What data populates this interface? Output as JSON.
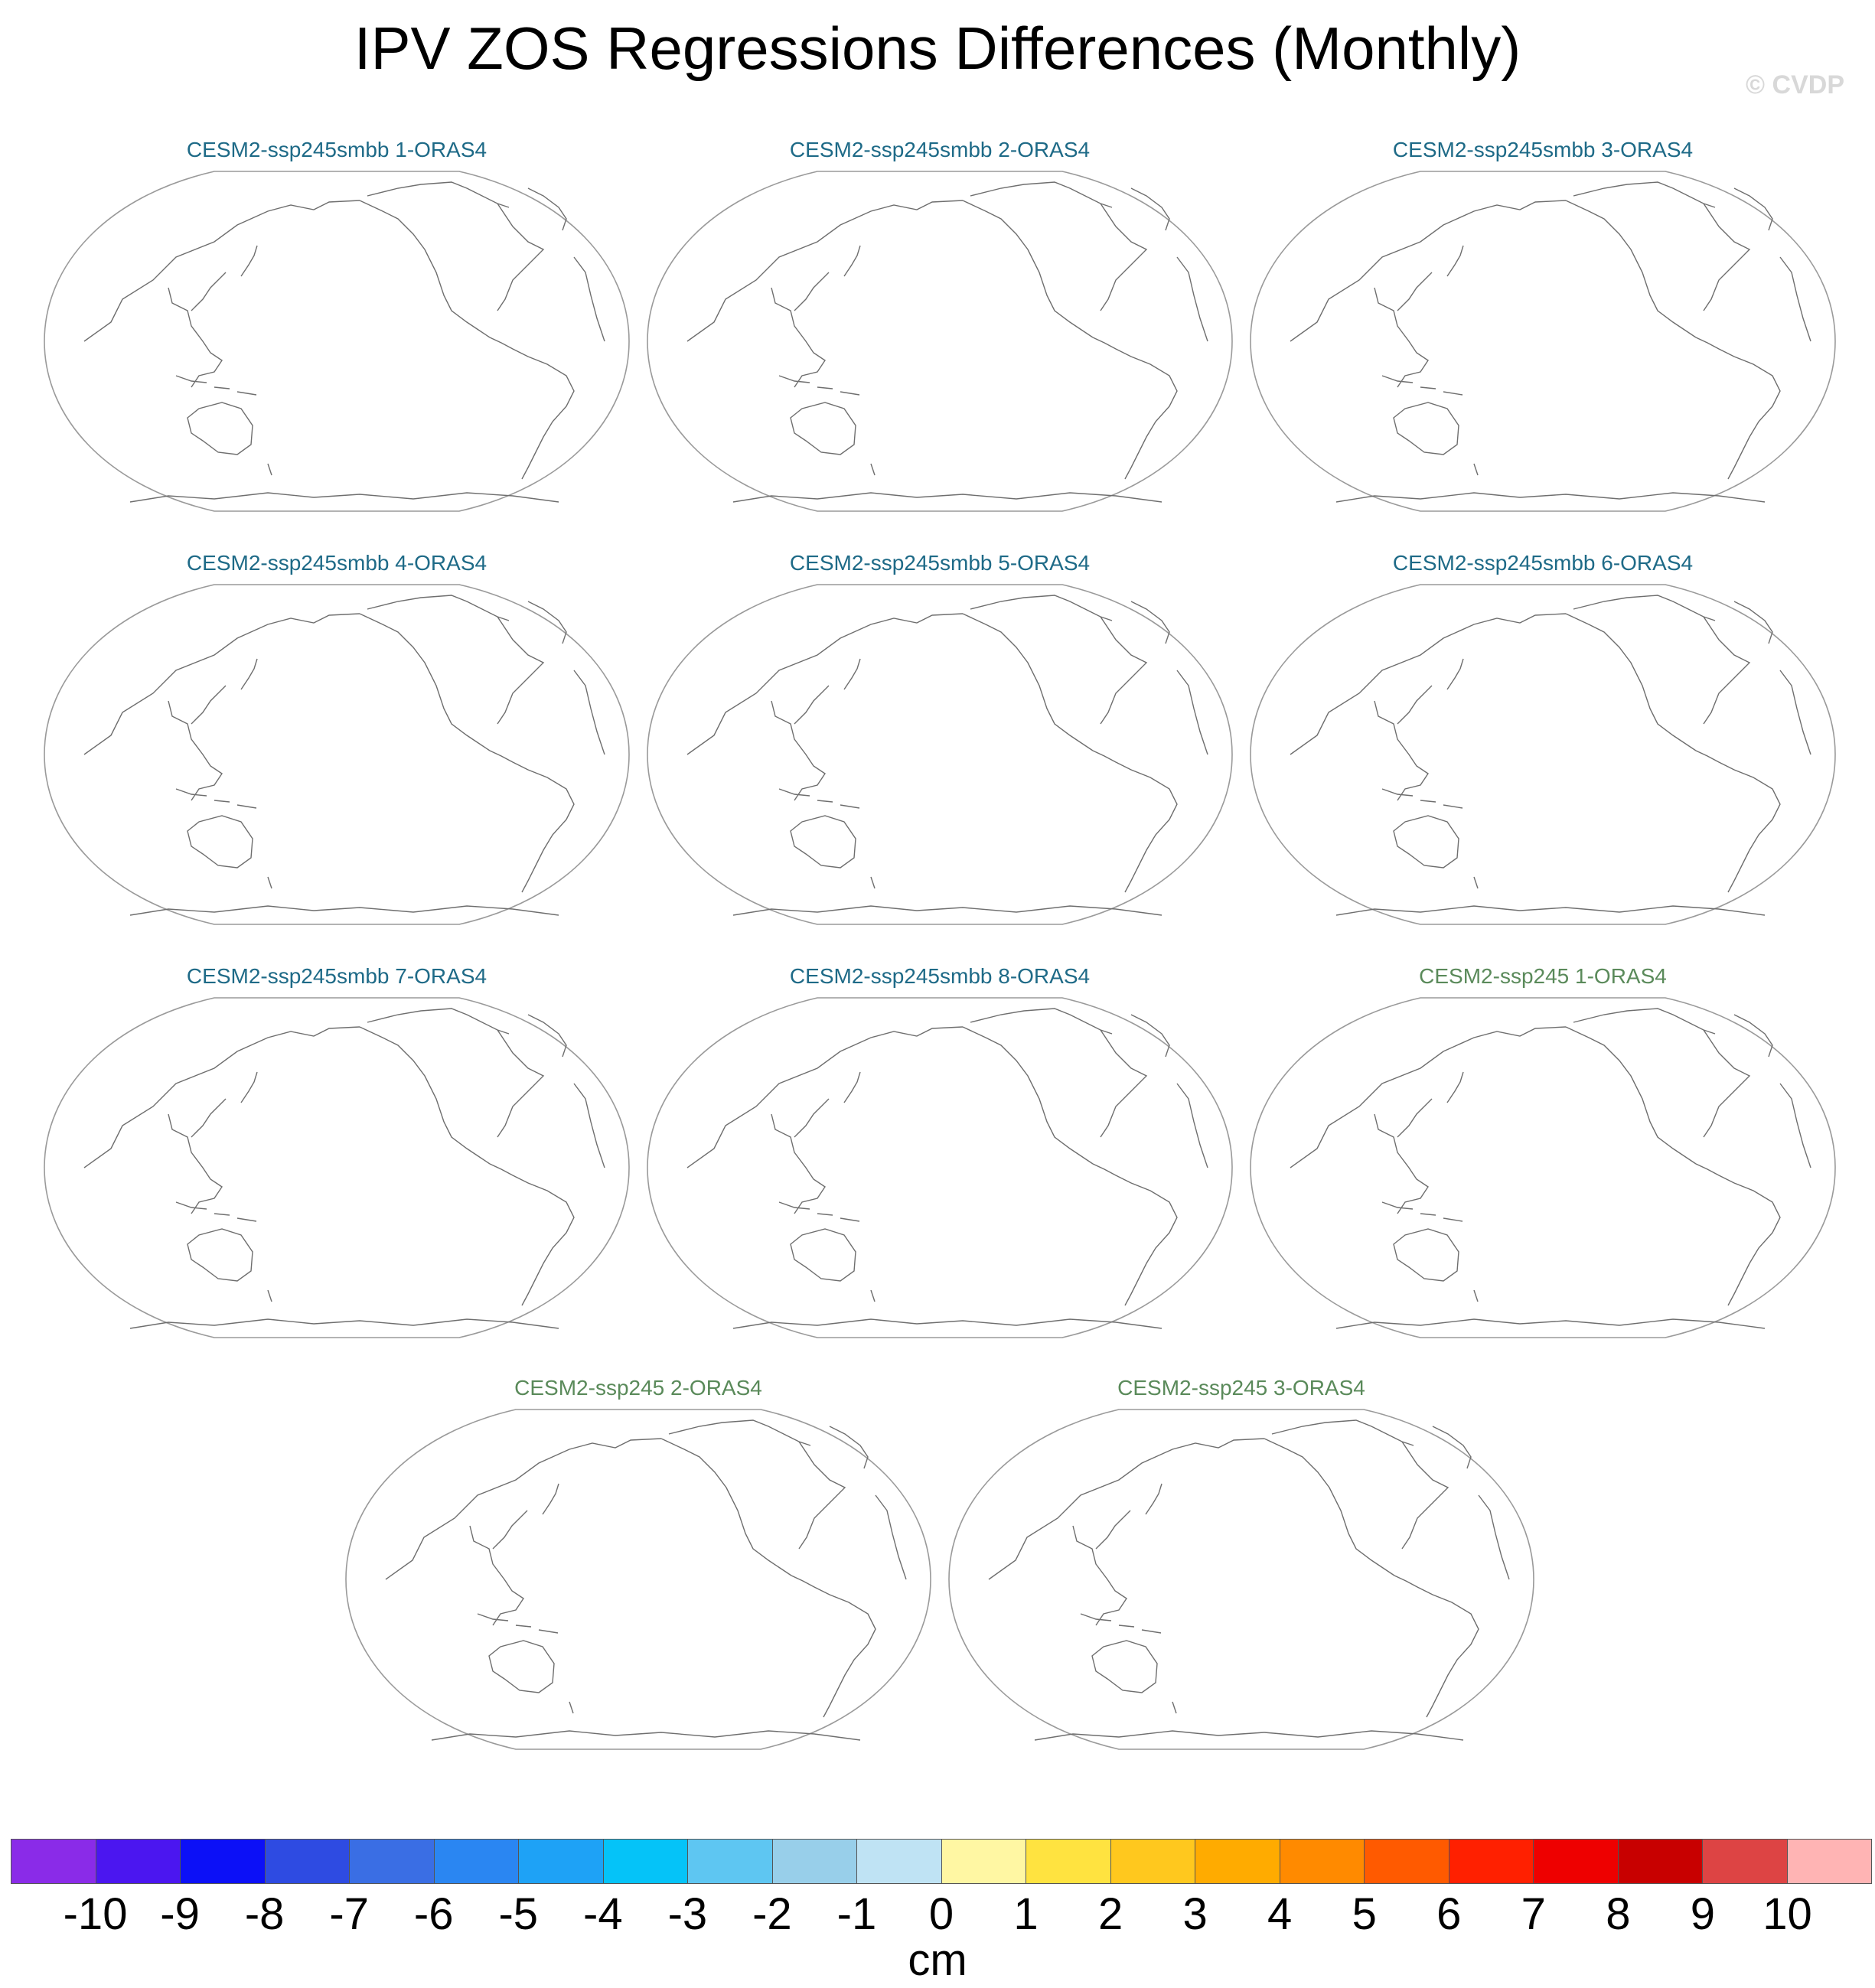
{
  "title": "IPV ZOS Regressions Differences (Monthly)",
  "watermark": "© CVDP",
  "panels": [
    {
      "label": "CESM2-ssp245smbb 1-ORAS4",
      "color": "#1e6a87"
    },
    {
      "label": "CESM2-ssp245smbb 2-ORAS4",
      "color": "#1e6a87"
    },
    {
      "label": "CESM2-ssp245smbb 3-ORAS4",
      "color": "#1e6a87"
    },
    {
      "label": "CESM2-ssp245smbb 4-ORAS4",
      "color": "#1e6a87"
    },
    {
      "label": "CESM2-ssp245smbb 5-ORAS4",
      "color": "#1e6a87"
    },
    {
      "label": "CESM2-ssp245smbb 6-ORAS4",
      "color": "#1e6a87"
    },
    {
      "label": "CESM2-ssp245smbb 7-ORAS4",
      "color": "#1e6a87"
    },
    {
      "label": "CESM2-ssp245smbb 8-ORAS4",
      "color": "#1e6a87"
    },
    {
      "label": "CESM2-ssp245 1-ORAS4",
      "color": "#5a8a5a"
    },
    {
      "label": "CESM2-ssp245 2-ORAS4",
      "color": "#5a8a5a"
    },
    {
      "label": "CESM2-ssp245 3-ORAS4",
      "color": "#5a8a5a"
    }
  ],
  "colorbar": {
    "units": "cm",
    "ticks": [
      "-10",
      "-9",
      "-8",
      "-7",
      "-6",
      "-5",
      "-4",
      "-3",
      "-2",
      "-1",
      "0",
      "1",
      "2",
      "3",
      "4",
      "5",
      "6",
      "7",
      "8",
      "9",
      "10"
    ],
    "colors": [
      "#8a2be8",
      "#4b16f0",
      "#0c10f7",
      "#2e4be2",
      "#3a6ee4",
      "#2a86f2",
      "#1ea2f6",
      "#05c3f8",
      "#5ec6f2",
      "#98cfea",
      "#bfe3f4",
      "#fff7a3",
      "#ffe340",
      "#ffc81e",
      "#ffab00",
      "#ff8a00",
      "#ff5a00",
      "#ff2000",
      "#ee0000",
      "#c80000",
      "#dd4444",
      "#ffb4b4"
    ]
  }
}
